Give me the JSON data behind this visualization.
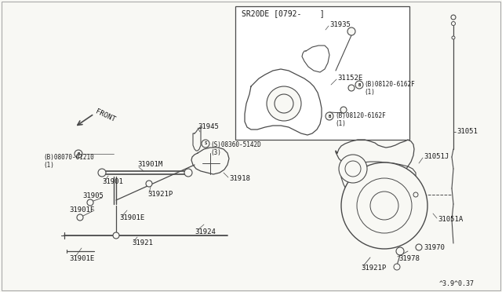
{
  "bg_color": "#f8f8f4",
  "line_color": "#4a4a4a",
  "text_color": "#1a1a1a",
  "part_numbers": {
    "SR20DE_label": "SR20DE [0792-    ]",
    "31935": "31935",
    "31152E": "31152E",
    "08120_upper": "(B)08120-6162F\n(1)",
    "08120_lower": "(B)08120-6162F\n(1)",
    "31051": "31051",
    "31051J": "31051J",
    "31051A": "31051A",
    "31945": "31945",
    "08360": "(S)08360-5142D\n(3)",
    "08070": "(B)08070-61210\n(1)",
    "31901M": "31901M",
    "31901": "31901",
    "31905": "31905",
    "31901F": "31901F",
    "31901E_1": "31901E",
    "31901E_2": "31901E",
    "31921P_L": "31921P",
    "31921P_R": "31921P",
    "31918": "31918",
    "31924": "31924",
    "31921": "31921",
    "31970": "31970",
    "31978": "31978",
    "FRONT": "FRONT",
    "watermark": "^3.9^0.37"
  }
}
